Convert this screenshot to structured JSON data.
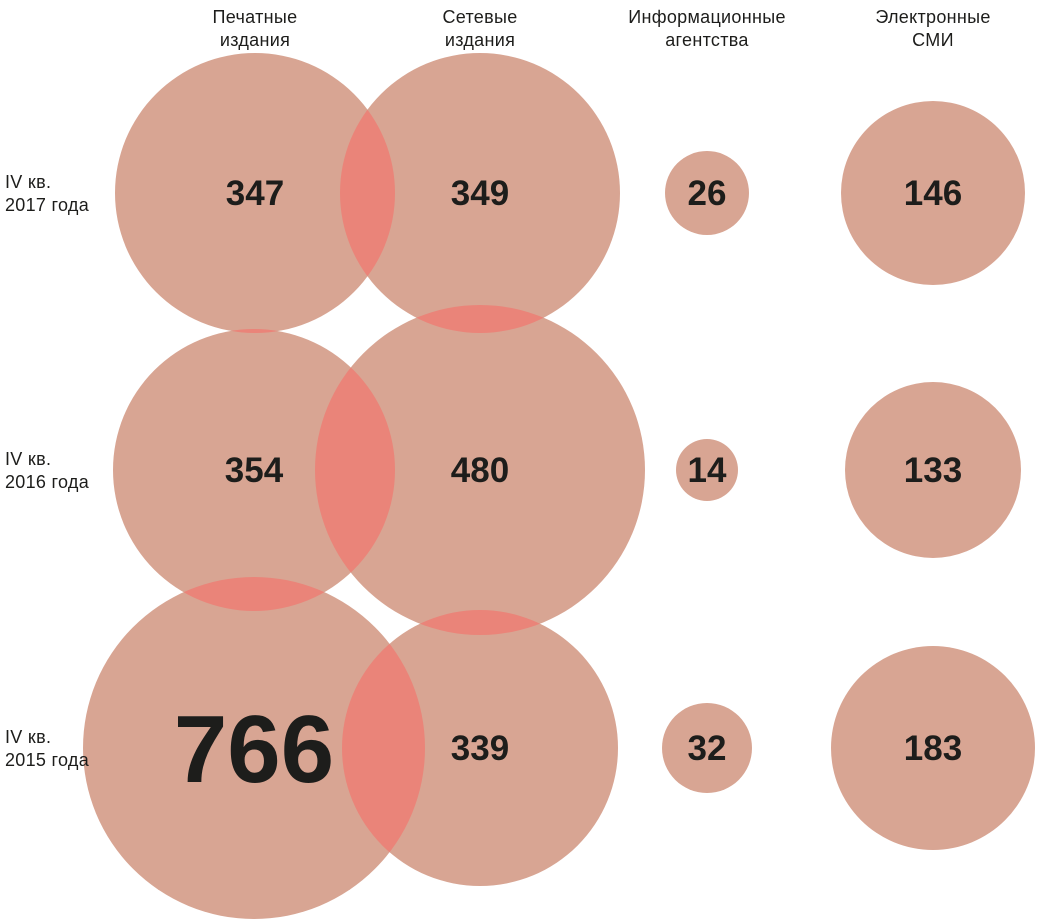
{
  "chart_data": {
    "type": "bubble",
    "categories": [
      "Печатные издания",
      "Сетевые издания",
      "Информационные агентства",
      "Электронные СМИ"
    ],
    "category_lines": [
      [
        "Печатные",
        "издания"
      ],
      [
        "Сетевые",
        "издания"
      ],
      [
        "Информационные",
        "агентства"
      ],
      [
        "Электронные",
        "СМИ"
      ]
    ],
    "rows": [
      {
        "label": [
          "IV кв.",
          "2017 года"
        ],
        "values": [
          347,
          349,
          26,
          146
        ]
      },
      {
        "label": [
          "IV кв.",
          "2016 года"
        ],
        "values": [
          354,
          480,
          14,
          133
        ]
      },
      {
        "label": [
          "IV кв.",
          "2015 года"
        ],
        "values": [
          766,
          339,
          32,
          183
        ]
      }
    ],
    "highlight": {
      "row": 2,
      "col": 0
    },
    "colors": {
      "bubble": "#d8a593",
      "overlap": "#ea8479",
      "text": "#1d1d1b"
    }
  }
}
